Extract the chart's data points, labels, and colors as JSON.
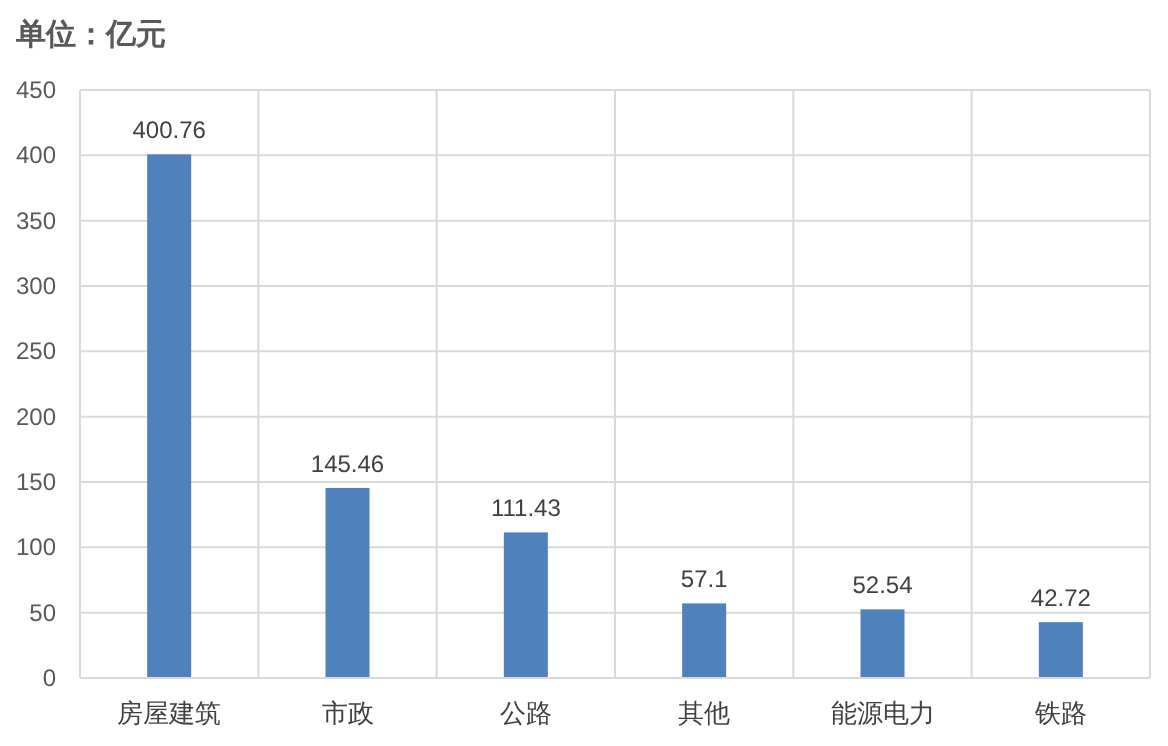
{
  "chart_data": {
    "type": "bar",
    "ylabel": "单位：亿元",
    "categories": [
      "房屋建筑",
      "市政",
      "公路",
      "其他",
      "能源电力",
      "铁路"
    ],
    "values": [
      400.76,
      145.46,
      111.43,
      57.1,
      52.54,
      42.72
    ],
    "color": "#4f81bd",
    "ylim": [
      0,
      450
    ],
    "yticks": [
      0,
      50,
      100,
      150,
      200,
      250,
      300,
      350,
      400,
      450
    ],
    "grid": true,
    "data_labels": true
  }
}
